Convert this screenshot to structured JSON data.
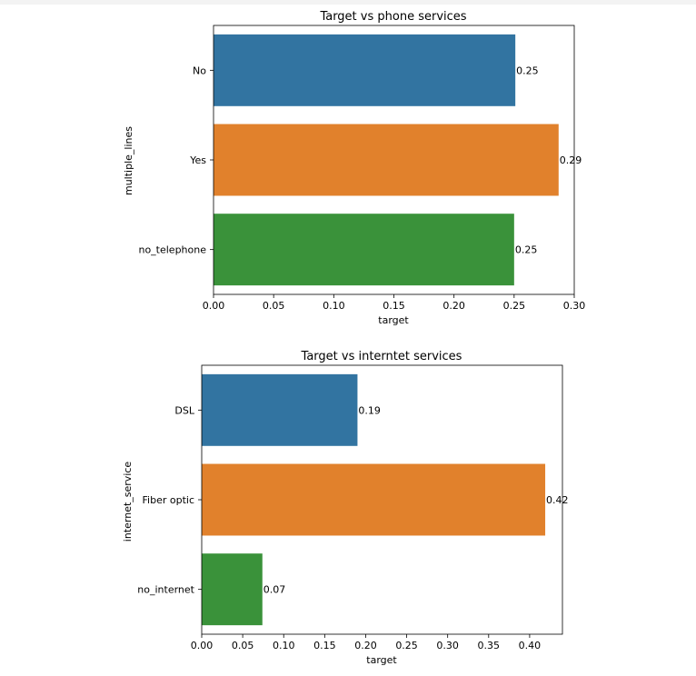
{
  "chart_data": [
    {
      "type": "bar",
      "orientation": "horizontal",
      "title": "Target vs phone services",
      "xlabel": "target",
      "ylabel": "multiple_lines",
      "categories": [
        "No",
        "Yes",
        "no_telephone"
      ],
      "values": [
        0.251,
        0.287,
        0.25
      ],
      "data_labels": [
        "0.25",
        "0.29",
        "0.25"
      ],
      "colors": [
        "#3274a1",
        "#e1812c",
        "#3a923a"
      ],
      "xlim": [
        0,
        0.3
      ],
      "xticks": [
        "0.00",
        "0.05",
        "0.10",
        "0.15",
        "0.20",
        "0.25",
        "0.30"
      ],
      "grid": false
    },
    {
      "type": "bar",
      "orientation": "horizontal",
      "title": "Target vs interntet services",
      "xlabel": "target",
      "ylabel": "internet_service",
      "categories": [
        "DSL",
        "Fiber optic",
        "no_internet"
      ],
      "values": [
        0.19,
        0.419,
        0.074
      ],
      "data_labels": [
        "0.19",
        "0.42",
        "0.07"
      ],
      "colors": [
        "#3274a1",
        "#e1812c",
        "#3a923a"
      ],
      "xlim": [
        0,
        0.44
      ],
      "xticks": [
        "0.00",
        "0.05",
        "0.10",
        "0.15",
        "0.20",
        "0.25",
        "0.30",
        "0.35",
        "0.40"
      ],
      "grid": false
    }
  ]
}
